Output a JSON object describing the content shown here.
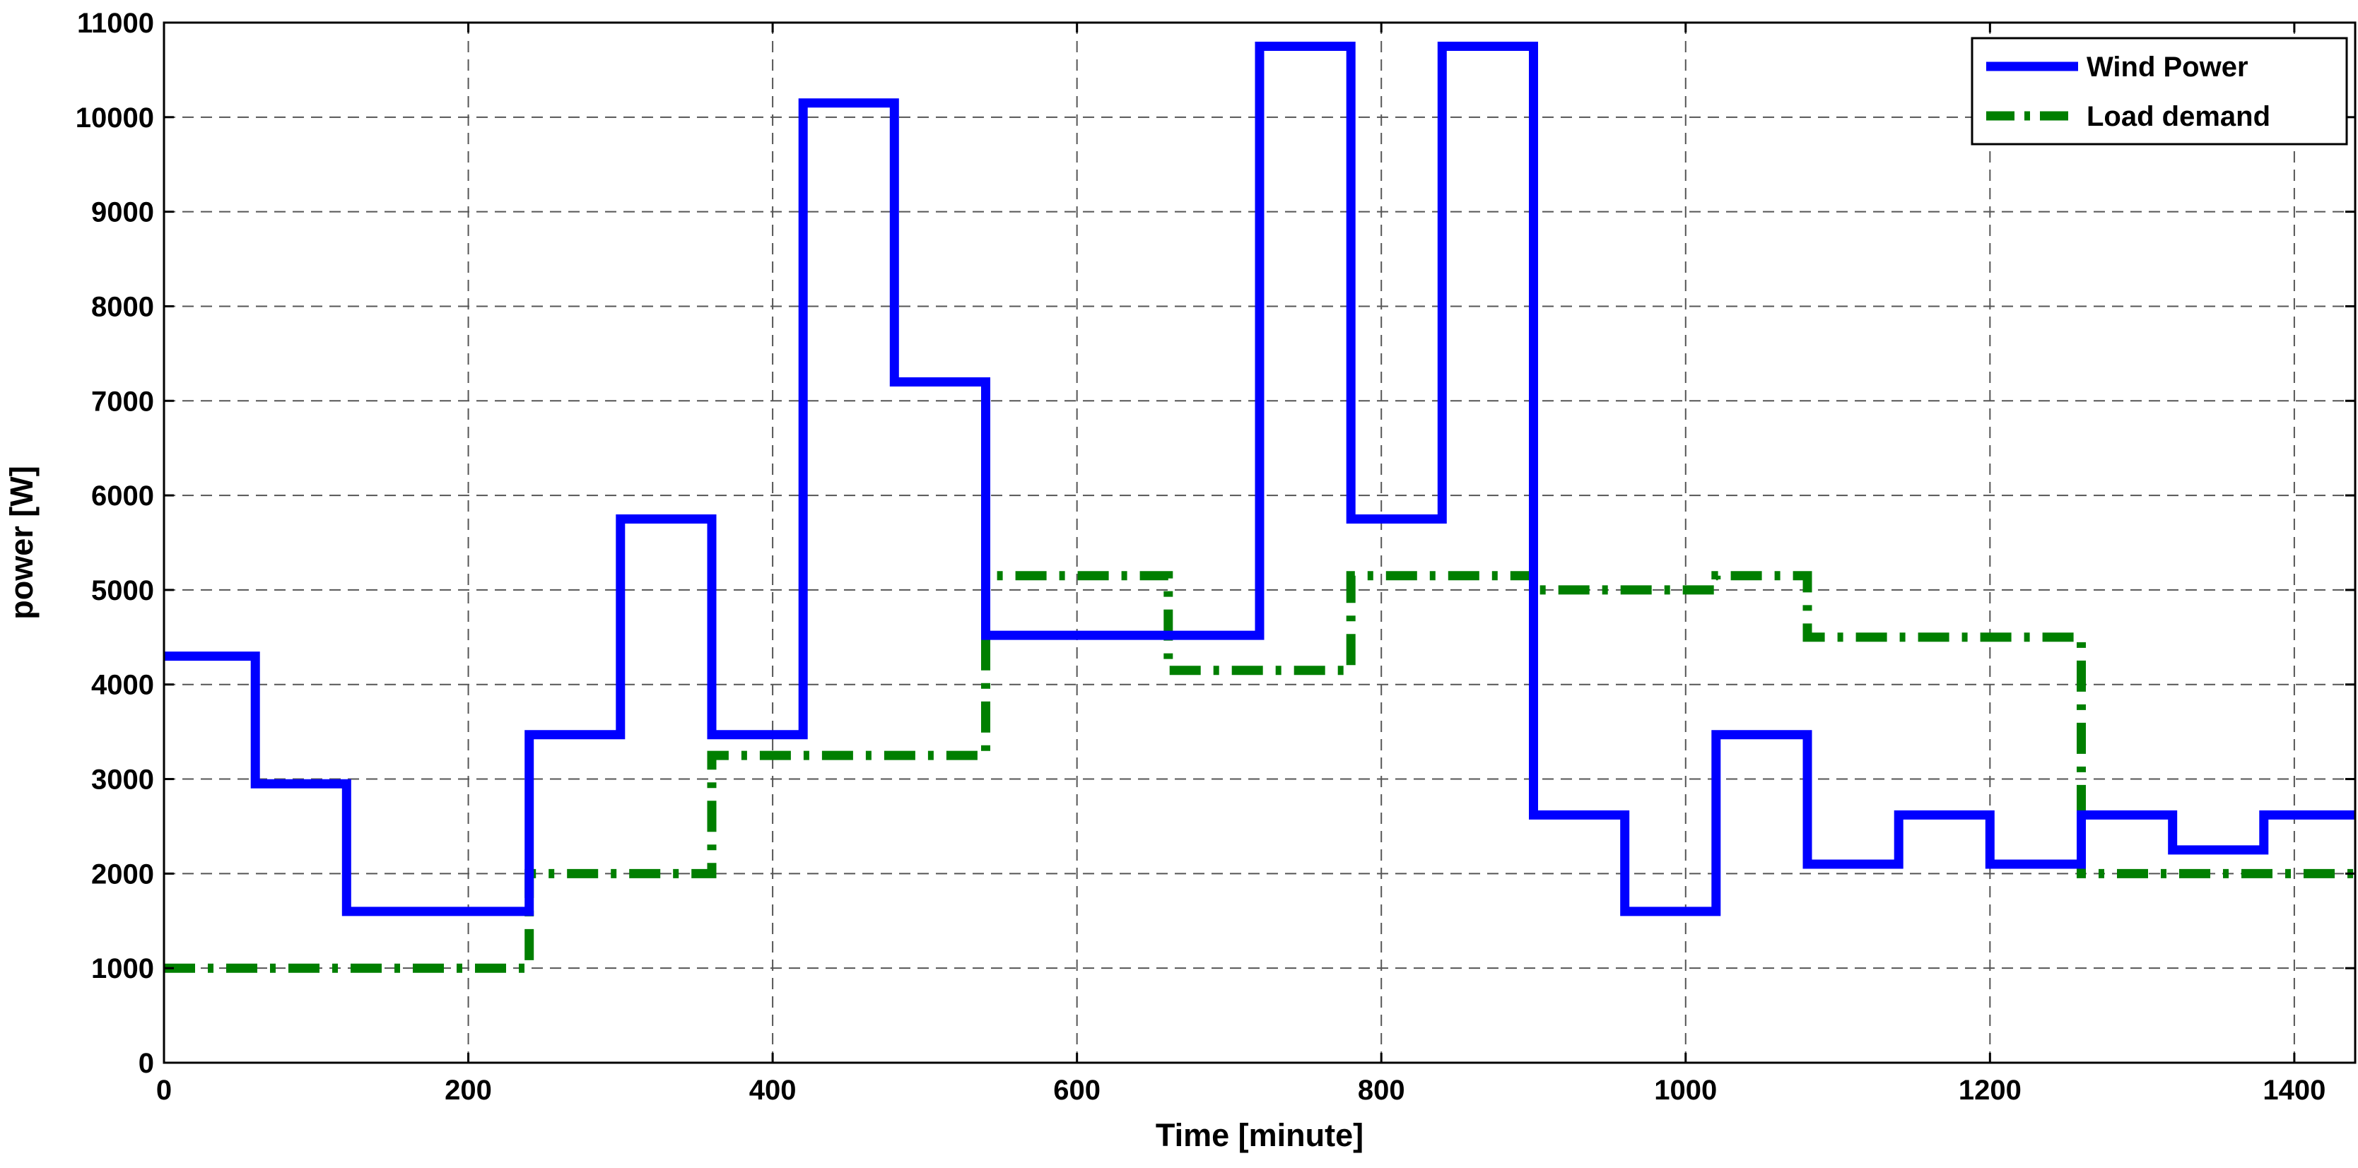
{
  "chart_data": {
    "type": "line",
    "title": "",
    "xlabel": "Time [minute]",
    "ylabel": "power [W]",
    "xlim": [
      0,
      1440
    ],
    "ylim": [
      0,
      11000
    ],
    "xticks": [
      0,
      200,
      400,
      600,
      800,
      1000,
      1200,
      1400
    ],
    "yticks": [
      0,
      1000,
      2000,
      3000,
      4000,
      5000,
      6000,
      7000,
      8000,
      9000,
      10000,
      11000
    ],
    "grid": true,
    "legend_position": "top-right",
    "series": [
      {
        "name": "Wind Power",
        "style": "solid",
        "color": "#0000ff",
        "x": [
          0,
          60,
          60,
          120,
          120,
          240,
          240,
          300,
          300,
          360,
          360,
          420,
          420,
          480,
          480,
          540,
          540,
          720,
          720,
          780,
          780,
          840,
          840,
          900,
          900,
          960,
          960,
          1020,
          1020,
          1080,
          1080,
          1140,
          1140,
          1200,
          1200,
          1260,
          1260,
          1320,
          1320,
          1380,
          1380,
          1440
        ],
        "y": [
          4300,
          4300,
          2950,
          2950,
          1600,
          1600,
          3470,
          3470,
          5750,
          5750,
          3470,
          3470,
          10150,
          10150,
          7200,
          7200,
          4520,
          4520,
          10750,
          10750,
          5750,
          5750,
          10750,
          10750,
          2620,
          2620,
          1600,
          1600,
          3470,
          3470,
          2100,
          2100,
          2620,
          2620,
          2100,
          2100,
          2620,
          2620,
          2250,
          2250,
          2620,
          2620
        ]
      },
      {
        "name": "Load demand",
        "style": "dash-dot",
        "color": "#007f00",
        "x": [
          0,
          240,
          240,
          360,
          360,
          540,
          540,
          660,
          660,
          780,
          780,
          900,
          900,
          1020,
          1020,
          1080,
          1080,
          1260,
          1260,
          1440
        ],
        "y": [
          1000,
          1000,
          2000,
          2000,
          3250,
          3250,
          5150,
          5150,
          4150,
          4150,
          5150,
          5150,
          5000,
          5000,
          5150,
          5150,
          4500,
          4500,
          2000,
          2000
        ]
      }
    ]
  }
}
